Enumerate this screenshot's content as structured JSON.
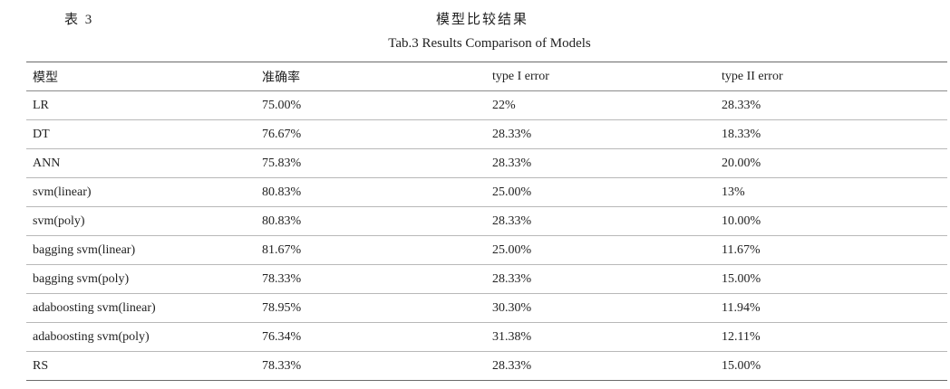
{
  "caption": {
    "label": "表 3",
    "title_cn": "模型比较结果",
    "title_en": "Tab.3 Results Comparison of Models"
  },
  "table": {
    "headers": [
      "模型",
      "准确率",
      "type I error",
      "type II error"
    ],
    "rows": [
      [
        "LR",
        "75.00%",
        "22%",
        "28.33%"
      ],
      [
        "DT",
        "76.67%",
        "28.33%",
        "18.33%"
      ],
      [
        "ANN",
        "75.83%",
        "28.33%",
        "20.00%"
      ],
      [
        "svm(linear)",
        "80.83%",
        "25.00%",
        "13%"
      ],
      [
        "svm(poly)",
        "80.83%",
        "28.33%",
        "10.00%"
      ],
      [
        "bagging svm(linear)",
        "81.67%",
        "25.00%",
        "11.67%"
      ],
      [
        "bagging svm(poly)",
        "78.33%",
        "28.33%",
        "15.00%"
      ],
      [
        "adaboosting svm(linear)",
        "78.95%",
        "30.30%",
        "11.94%"
      ],
      [
        "adaboosting svm(poly)",
        "76.34%",
        "31.38%",
        "12.11%"
      ],
      [
        "RS",
        "78.33%",
        "28.33%",
        "15.00%"
      ]
    ]
  }
}
